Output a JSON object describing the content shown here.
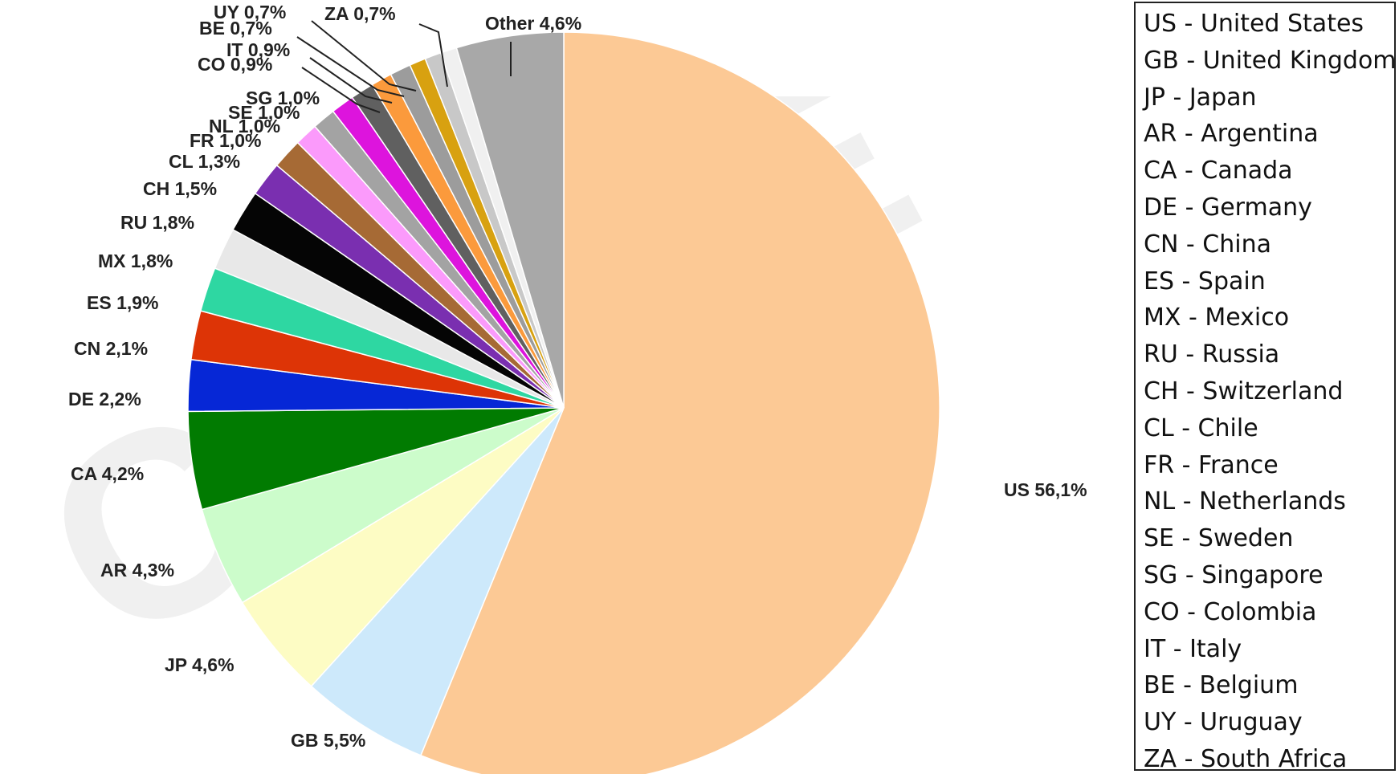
{
  "chart_data": {
    "type": "pie",
    "slices": [
      {
        "code": "US",
        "label": "US 56,1%",
        "value": 56.1,
        "color": "#fcc995"
      },
      {
        "code": "GB",
        "label": "GB 5,5%",
        "value": 5.5,
        "color": "#cde9fb"
      },
      {
        "code": "JP",
        "label": "JP 4,6%",
        "value": 4.6,
        "color": "#fdfcc4"
      },
      {
        "code": "AR",
        "label": "AR 4,3%",
        "value": 4.3,
        "color": "#ccfccb"
      },
      {
        "code": "CA",
        "label": "CA 4,2%",
        "value": 4.2,
        "color": "#017b01"
      },
      {
        "code": "DE",
        "label": "DE 2,2%",
        "value": 2.2,
        "color": "#0627d6"
      },
      {
        "code": "CN",
        "label": "CN 2,1%",
        "value": 2.1,
        "color": "#dd3406"
      },
      {
        "code": "ES",
        "label": "ES 1,9%",
        "value": 1.9,
        "color": "#2ed7a2"
      },
      {
        "code": "MX",
        "label": "MX 1,8%",
        "value": 1.8,
        "color": "#e8e8e8"
      },
      {
        "code": "RU",
        "label": "RU 1,8%",
        "value": 1.8,
        "color": "#050505"
      },
      {
        "code": "CH",
        "label": "CH 1,5%",
        "value": 1.5,
        "color": "#7a2fb0"
      },
      {
        "code": "CL",
        "label": "CL 1,3%",
        "value": 1.3,
        "color": "#a66a35"
      },
      {
        "code": "FR",
        "label": "FR 1,0%",
        "value": 1.0,
        "color": "#fb9afb"
      },
      {
        "code": "NL",
        "label": "NL 1,0%",
        "value": 1.0,
        "color": "#a3a3a3"
      },
      {
        "code": "SE",
        "label": "SE 1,0%",
        "value": 1.0,
        "color": "#dd14dd"
      },
      {
        "code": "SG",
        "label": "SG 1,0%",
        "value": 1.0,
        "color": "#606060"
      },
      {
        "code": "CO",
        "label": "CO 0,9%",
        "value": 0.9,
        "color": "#fb9a3c"
      },
      {
        "code": "IT",
        "label": "IT 0,9%",
        "value": 0.9,
        "color": "#9c9c9c"
      },
      {
        "code": "BE",
        "label": "BE 0,7%",
        "value": 0.7,
        "color": "#d8a110"
      },
      {
        "code": "UY",
        "label": "UY 0,7%",
        "value": 0.7,
        "color": "#c8c8c8"
      },
      {
        "code": "ZA",
        "label": "ZA 0,7%",
        "value": 0.7,
        "color": "#f0f0f0"
      },
      {
        "code": "Other",
        "label": "Other 4,6%",
        "value": 4.6,
        "color": "#a8a8a8"
      }
    ],
    "legend": [
      "US - United States",
      "GB - United Kingdom",
      "JP - Japan",
      "AR - Argentina",
      "CA - Canada",
      "DE - Germany",
      "CN - China",
      "ES - Spain",
      "MX - Mexico",
      "RU - Russia",
      "CH - Switzerland",
      "CL - Chile",
      "FR - France",
      "NL - Netherlands",
      "SE - Sweden",
      "SG - Singapore",
      "CO - Colombia",
      "IT - Italy",
      "BE - Belgium",
      "UY - Uruguay",
      "ZA - South Africa"
    ],
    "legend_placement": "right",
    "watermark": "CANVE"
  }
}
